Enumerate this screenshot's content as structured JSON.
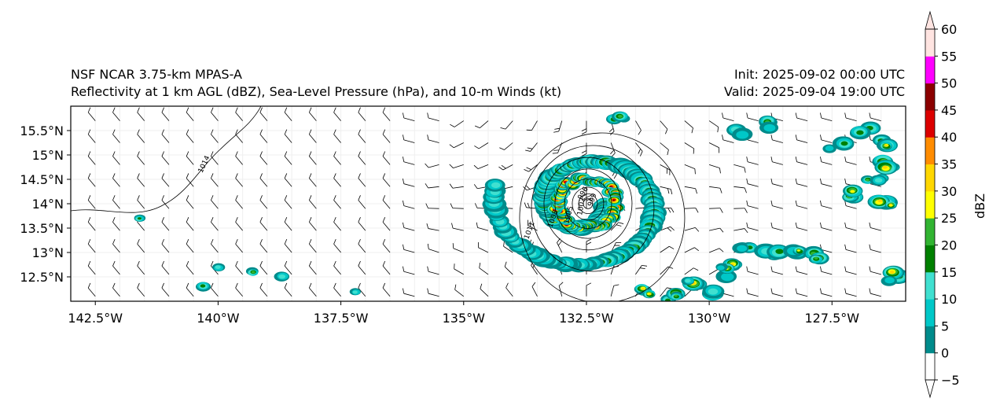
{
  "header": {
    "model_title": "NSF NCAR 3.75-km MPAS-A",
    "subtitle": "Reflectivity at 1 km AGL (dBZ), Sea-Level Pressure (hPa), and 10-m Winds (kt)",
    "init": "Init: 2025-09-02 00:00 UTC",
    "valid": "Valid: 2025-09-04 19:00 UTC"
  },
  "map": {
    "lon_range": [
      -143.0,
      -126.0
    ],
    "lat_range": [
      12.0,
      16.0
    ],
    "lon_ticks": [
      {
        "value": -142.5,
        "label": "142.5°W"
      },
      {
        "value": -140.0,
        "label": "140°W"
      },
      {
        "value": -137.5,
        "label": "137.5°W"
      },
      {
        "value": -135.0,
        "label": "135°W"
      },
      {
        "value": -132.5,
        "label": "132.5°W"
      },
      {
        "value": -130.0,
        "label": "130°W"
      },
      {
        "value": -127.5,
        "label": "127.5°W"
      }
    ],
    "lat_ticks": [
      {
        "value": 15.5,
        "label": "15.5°N"
      },
      {
        "value": 15.0,
        "label": "15°N"
      },
      {
        "value": 14.5,
        "label": "14.5°N"
      },
      {
        "value": 14.0,
        "label": "14°N"
      },
      {
        "value": 13.5,
        "label": "13.5°N"
      },
      {
        "value": 13.0,
        "label": "13°N"
      },
      {
        "value": 12.5,
        "label": "12.5°N"
      }
    ],
    "isobar_labels": [
      "1014",
      "1011",
      "1008",
      "1005",
      "1002",
      "999",
      "996"
    ],
    "cyclone_center": {
      "lon": -132.5,
      "lat": 14.0
    }
  },
  "colorbar": {
    "label": "dBZ",
    "levels": [
      -5,
      0,
      5,
      10,
      15,
      20,
      25,
      30,
      35,
      40,
      45,
      50,
      55,
      60
    ],
    "tick_labels": [
      "−5",
      "0",
      "5",
      "10",
      "15",
      "20",
      "25",
      "30",
      "35",
      "40",
      "45",
      "50",
      "55",
      "60"
    ],
    "colors": [
      "#ffffff",
      "#008b8b",
      "#00c8c8",
      "#40e0d0",
      "#008000",
      "#32b432",
      "#ffff00",
      "#ffd700",
      "#ff8c00",
      "#dc0000",
      "#8b0000",
      "#ff00ff",
      "#ffe4e1"
    ]
  }
}
